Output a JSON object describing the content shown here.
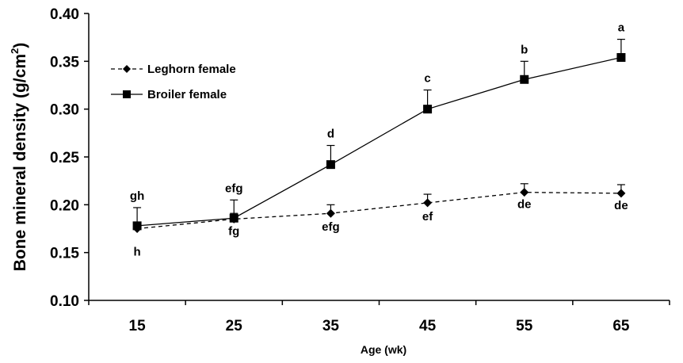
{
  "chart_data": {
    "type": "line",
    "xlabel": "Age (wk)",
    "ylabel_main": "Bone mineral density (g/cm",
    "ylabel_sup": "2",
    "ylabel_end": ")",
    "x": [
      15,
      25,
      35,
      45,
      55,
      65
    ],
    "x_tick_labels": [
      "15",
      "25",
      "35",
      "45",
      "55",
      "65"
    ],
    "ylim": [
      0.1,
      0.4
    ],
    "y_ticks": [
      0.1,
      0.15,
      0.2,
      0.25,
      0.3,
      0.35,
      0.4
    ],
    "y_tick_labels": [
      "0.10",
      "0.15",
      "0.20",
      "0.25",
      "0.30",
      "0.35",
      "0.40"
    ],
    "grid": false,
    "legend_position": "top-left",
    "series": [
      {
        "name": "Leghorn female",
        "style": "dashed",
        "marker": "diamond",
        "values": [
          0.175,
          0.185,
          0.191,
          0.202,
          0.213,
          0.212
        ],
        "error": [
          0.006,
          0.006,
          0.009,
          0.009,
          0.009,
          0.009
        ],
        "labels": [
          "h",
          "fg",
          "efg",
          "ef",
          "de",
          "de"
        ]
      },
      {
        "name": "Broiler female",
        "style": "solid",
        "marker": "square",
        "values": [
          0.178,
          0.186,
          0.242,
          0.3,
          0.331,
          0.354
        ],
        "error": [
          0.019,
          0.019,
          0.02,
          0.02,
          0.019,
          0.019
        ],
        "labels": [
          "gh",
          "efg",
          "d",
          "c",
          "b",
          "a"
        ]
      }
    ]
  }
}
